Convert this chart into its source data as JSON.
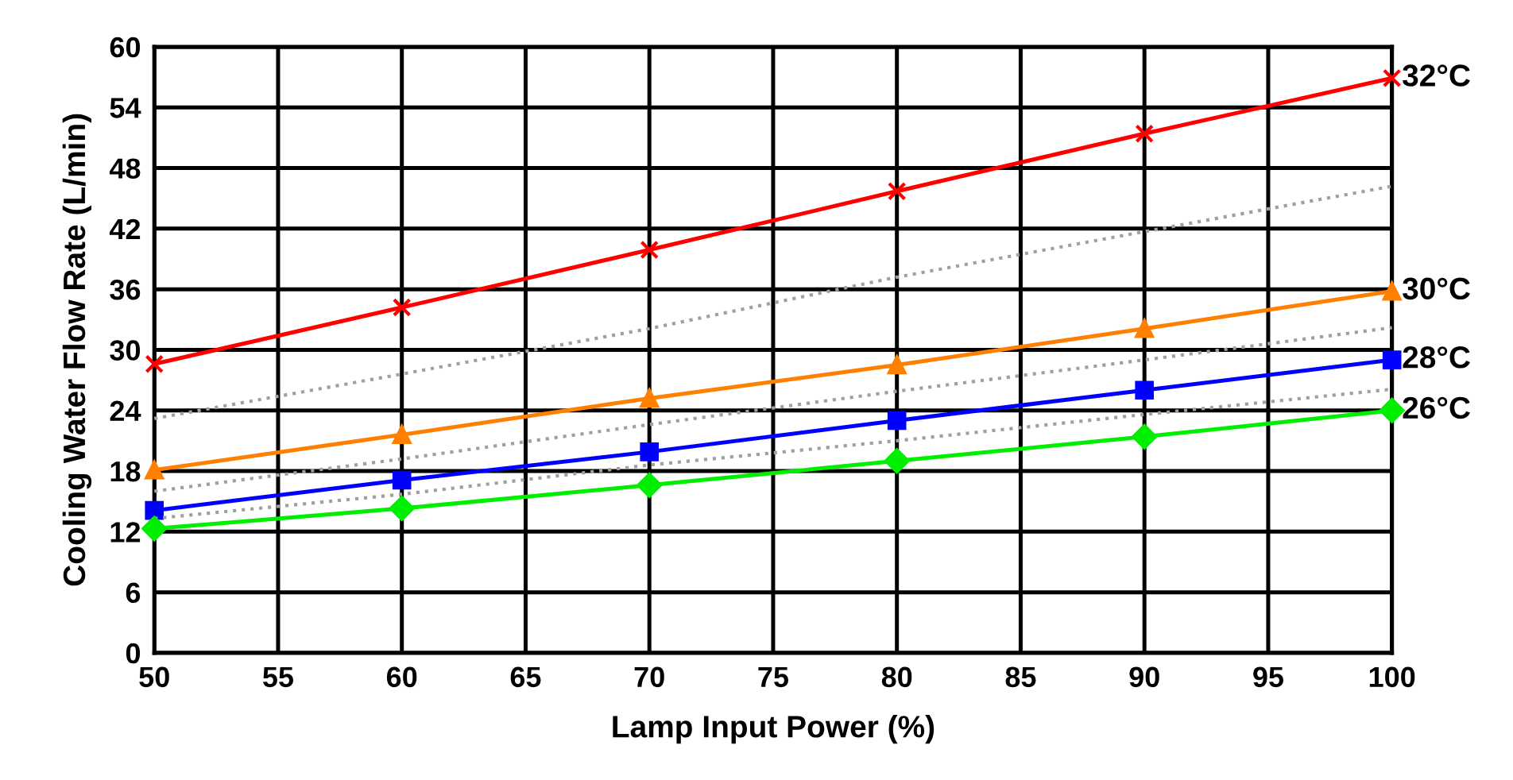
{
  "chart_data": {
    "type": "line",
    "xlabel": "Lamp Input Power (%)",
    "ylabel": "Cooling Water Flow Rate (L/min)",
    "x": [
      50,
      60,
      70,
      80,
      90,
      100
    ],
    "series": [
      {
        "name": "32°C",
        "color": "#ff0000",
        "marker": "cross",
        "values": [
          28.6,
          34.2,
          39.9,
          45.7,
          51.4,
          56.9
        ]
      },
      {
        "color": "#a0a0a0",
        "marker": "none",
        "line_style": "dotted",
        "values": [
          23.2,
          27.6,
          32.1,
          37.2,
          41.7,
          46.2
        ]
      },
      {
        "name": "30°C",
        "color": "#ff8000",
        "marker": "triangle",
        "values": [
          18.1,
          21.6,
          25.2,
          28.5,
          32.1,
          35.8
        ]
      },
      {
        "color": "#a0a0a0",
        "marker": "none",
        "line_style": "dotted",
        "values": [
          16.0,
          19.2,
          22.6,
          25.9,
          29.0,
          32.2
        ]
      },
      {
        "name": "28°C",
        "color": "#0000ff",
        "marker": "square",
        "values": [
          14.1,
          17.1,
          19.9,
          23.0,
          26.0,
          29.0
        ]
      },
      {
        "color": "#a0a0a0",
        "marker": "none",
        "line_style": "dotted",
        "values": [
          13.3,
          15.7,
          18.6,
          21.0,
          23.6,
          26.1
        ]
      },
      {
        "name": "26°C",
        "color": "#00ee00",
        "marker": "diamond",
        "values": [
          12.3,
          14.3,
          16.6,
          19.0,
          21.4,
          24.0
        ]
      }
    ],
    "xlim": [
      50,
      100
    ],
    "xticks": [
      50,
      55,
      60,
      65,
      70,
      75,
      80,
      85,
      90,
      95,
      100
    ],
    "ylim": [
      0,
      60
    ],
    "yticks": [
      0,
      6,
      12,
      18,
      24,
      30,
      36,
      42,
      48,
      54,
      60
    ],
    "grid": true,
    "legend": false,
    "line_style": "solid"
  }
}
